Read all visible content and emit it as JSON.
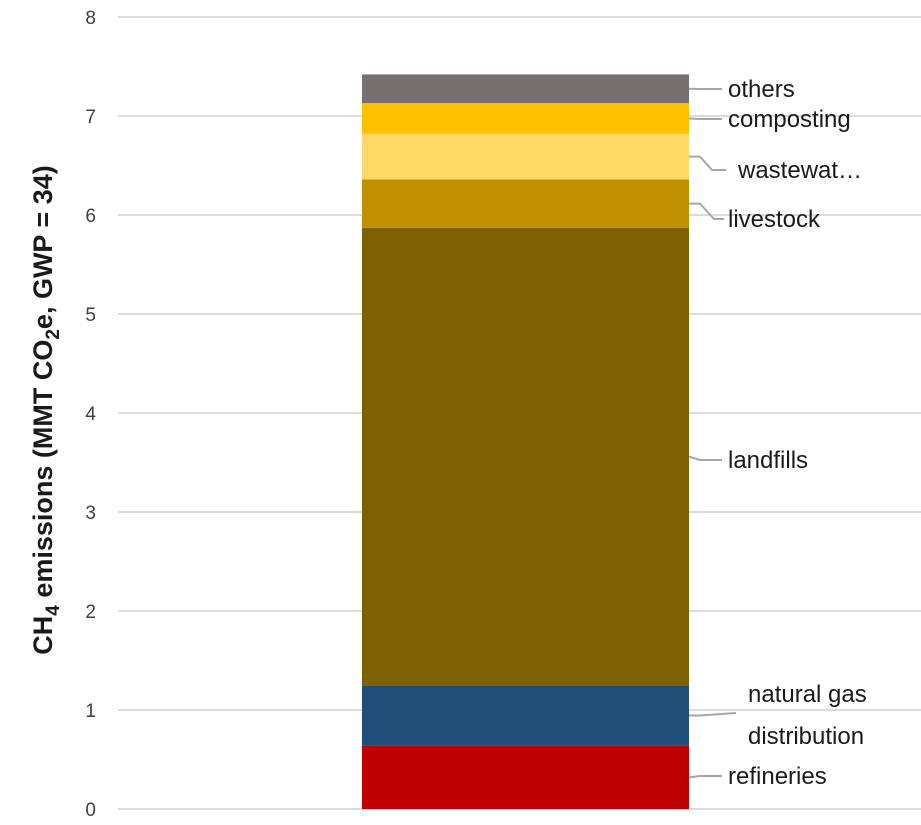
{
  "chart_data": {
    "type": "bar",
    "stacked": true,
    "title": "",
    "xlabel": "",
    "ylabel": {
      "prefix": "CH",
      "prefix_sub": "4",
      "mid": " emissions (MMT CO",
      "mid_sub": "2",
      "suffix": "e, GWP = 34)"
    },
    "ylim": [
      0,
      8
    ],
    "yticks": [
      "0",
      "1",
      "2",
      "3",
      "4",
      "5",
      "6",
      "7",
      "8"
    ],
    "grid": true,
    "series": [
      {
        "name": "refineries",
        "value": 0.64,
        "color": "#C00000"
      },
      {
        "name": "natural gas distribution",
        "value": 0.61,
        "color": "#1F4E79"
      },
      {
        "name": "landfills",
        "value": 4.62,
        "color": "#7F6000"
      },
      {
        "name": "livestock",
        "value": 0.49,
        "color": "#BF9000"
      },
      {
        "name": "wastewat…",
        "value": 0.46,
        "color": "#FFD966"
      },
      {
        "name": "composting",
        "value": 0.31,
        "color": "#FFC000"
      },
      {
        "name": "others",
        "value": 0.29,
        "color": "#767171"
      }
    ]
  }
}
